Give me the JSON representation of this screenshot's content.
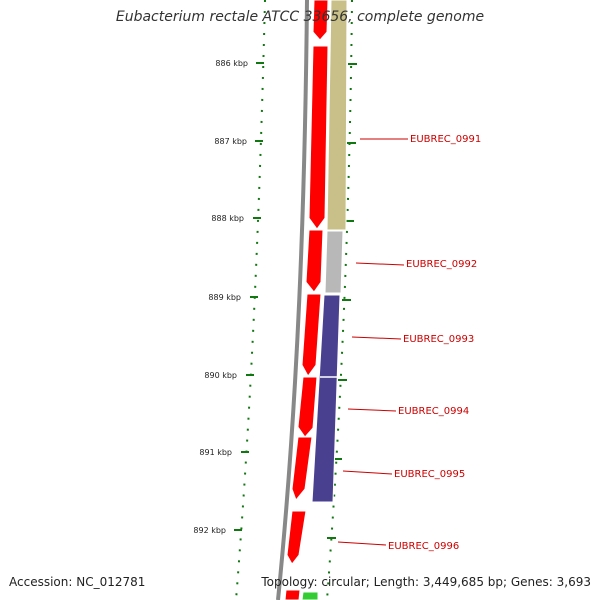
{
  "title": "Eubacterium rectale ATCC 33656, complete genome",
  "footer": {
    "accession": "Accession: NC_012781",
    "summary": "Topology: circular; Length: 3,449,685 bp; Genes: 3,693"
  },
  "colors": {
    "forward_gene": "#ff0000",
    "reverse_olive": "#c8c088",
    "reverse_gray": "#b8b8b8",
    "reverse_navy": "#4a4090",
    "backbone": "#888888",
    "tick": "#117711",
    "label": "#cc0000"
  },
  "scale_ticks": [
    {
      "label": "886 kbp",
      "pos_kbp": 886
    },
    {
      "label": "887 kbp",
      "pos_kbp": 887
    },
    {
      "label": "888 kbp",
      "pos_kbp": 888
    },
    {
      "label": "889 kbp",
      "pos_kbp": 889
    },
    {
      "label": "890 kbp",
      "pos_kbp": 890
    },
    {
      "label": "891 kbp",
      "pos_kbp": 891
    },
    {
      "label": "892 kbp",
      "pos_kbp": 892
    }
  ],
  "gene_labels": [
    {
      "name": "EUBREC_0991"
    },
    {
      "name": "EUBREC_0992"
    },
    {
      "name": "EUBREC_0993"
    },
    {
      "name": "EUBREC_0994"
    },
    {
      "name": "EUBREC_0995"
    },
    {
      "name": "EUBREC_0996"
    }
  ]
}
